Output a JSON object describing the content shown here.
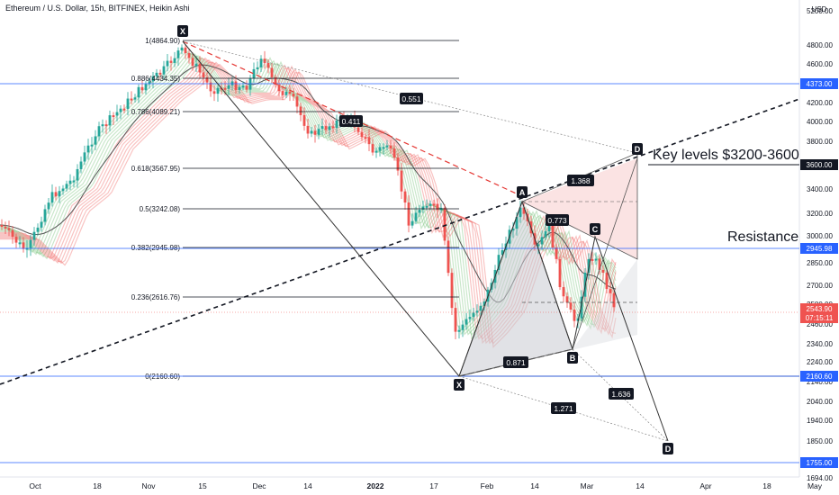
{
  "header": {
    "title": "Ethereum / U.S. Dollar, 15h, BITFINEX, Heikin Ashi",
    "currency": "USD"
  },
  "price_axis": {
    "ticks": [
      "5200.00",
      "4800.00",
      "4600.00",
      "4400.00",
      "4200.00",
      "4000.00",
      "3800.00",
      "3400.00",
      "3200.00",
      "3000.00",
      "2850.00",
      "2700.00",
      "2580.00",
      "2460.00",
      "2340.00",
      "2240.00",
      "2140.00",
      "2040.00",
      "1940.00",
      "1850.00",
      "1694.00"
    ],
    "badges": [
      {
        "text": "4373.00",
        "style": "blue"
      },
      {
        "text": "3600.00",
        "style": "dark"
      },
      {
        "text": "2945.98",
        "style": "blue"
      },
      {
        "text": "2543.90",
        "style": "red"
      },
      {
        "text": "07:15:11",
        "style": "red"
      },
      {
        "text": "2160.60",
        "style": "blue"
      },
      {
        "text": "1755.00",
        "style": "blue"
      }
    ]
  },
  "time_axis": [
    "Oct",
    "18",
    "Nov",
    "15",
    "Dec",
    "14",
    "2022",
    "17",
    "Feb",
    "14",
    "Mar",
    "14",
    "Apr",
    "18",
    "May"
  ],
  "fib_levels": [
    {
      "label": "1(4864.90)"
    },
    {
      "label": "0.886(4434.35)"
    },
    {
      "label": "0.786(4089.21)"
    },
    {
      "label": "0.618(3567.95)"
    },
    {
      "label": "0.5(3242.08)"
    },
    {
      "label": "0.382(2945.98)"
    },
    {
      "label": "0.236(2616.76)"
    },
    {
      "label": "0(2160.60)"
    }
  ],
  "pattern_points": [
    "X",
    "X",
    "A",
    "B",
    "C",
    "D",
    "D"
  ],
  "ratios": [
    "0.551",
    "0.411",
    "1.368",
    "0.773",
    "0.871",
    "1.636",
    "1.271"
  ],
  "annotations": {
    "key_levels": "Key levels $3200-3600",
    "resistance": "Resistance"
  },
  "colors": {
    "bull": "#26a69a",
    "bear": "#ef5350",
    "level_line": "#2962ff",
    "ribbon_up": "#66bb6a",
    "ribbon_down": "#ef5350"
  },
  "chart_data": {
    "type": "candlestick",
    "symbol": "ETHUSD",
    "timeframe": "15h",
    "y_axis_ticks": [
      4800,
      4600,
      4400,
      4200,
      4000,
      3800,
      3400,
      3200,
      3000,
      2850,
      2700,
      2580,
      2460,
      2340,
      2240,
      2140,
      2040,
      1940,
      1850
    ],
    "horizontal_levels": [
      4373.0,
      3600.0,
      2945.98,
      2160.6,
      1755.0
    ],
    "last_price": 2543.9,
    "approx_path": [
      [
        "Oct",
        2750
      ],
      [
        "18",
        3500
      ],
      [
        "Nov",
        4300
      ],
      [
        "Nov 10",
        4865
      ],
      [
        "15",
        4600
      ],
      [
        "Dec 1",
        4700
      ],
      [
        "Dec",
        4200
      ],
      [
        "14",
        3900
      ],
      [
        "2022",
        3750
      ],
      [
        "Jan 10",
        3250
      ],
      [
        "17",
        3000
      ],
      [
        "Jan 24",
        2200
      ],
      [
        "Feb",
        2750
      ],
      [
        "Feb 10",
        3250
      ],
      [
        "14",
        2950
      ],
      [
        "Feb 24",
        2400
      ],
      [
        "Mar",
        2950
      ],
      [
        "Mar 8",
        2544
      ]
    ]
  }
}
